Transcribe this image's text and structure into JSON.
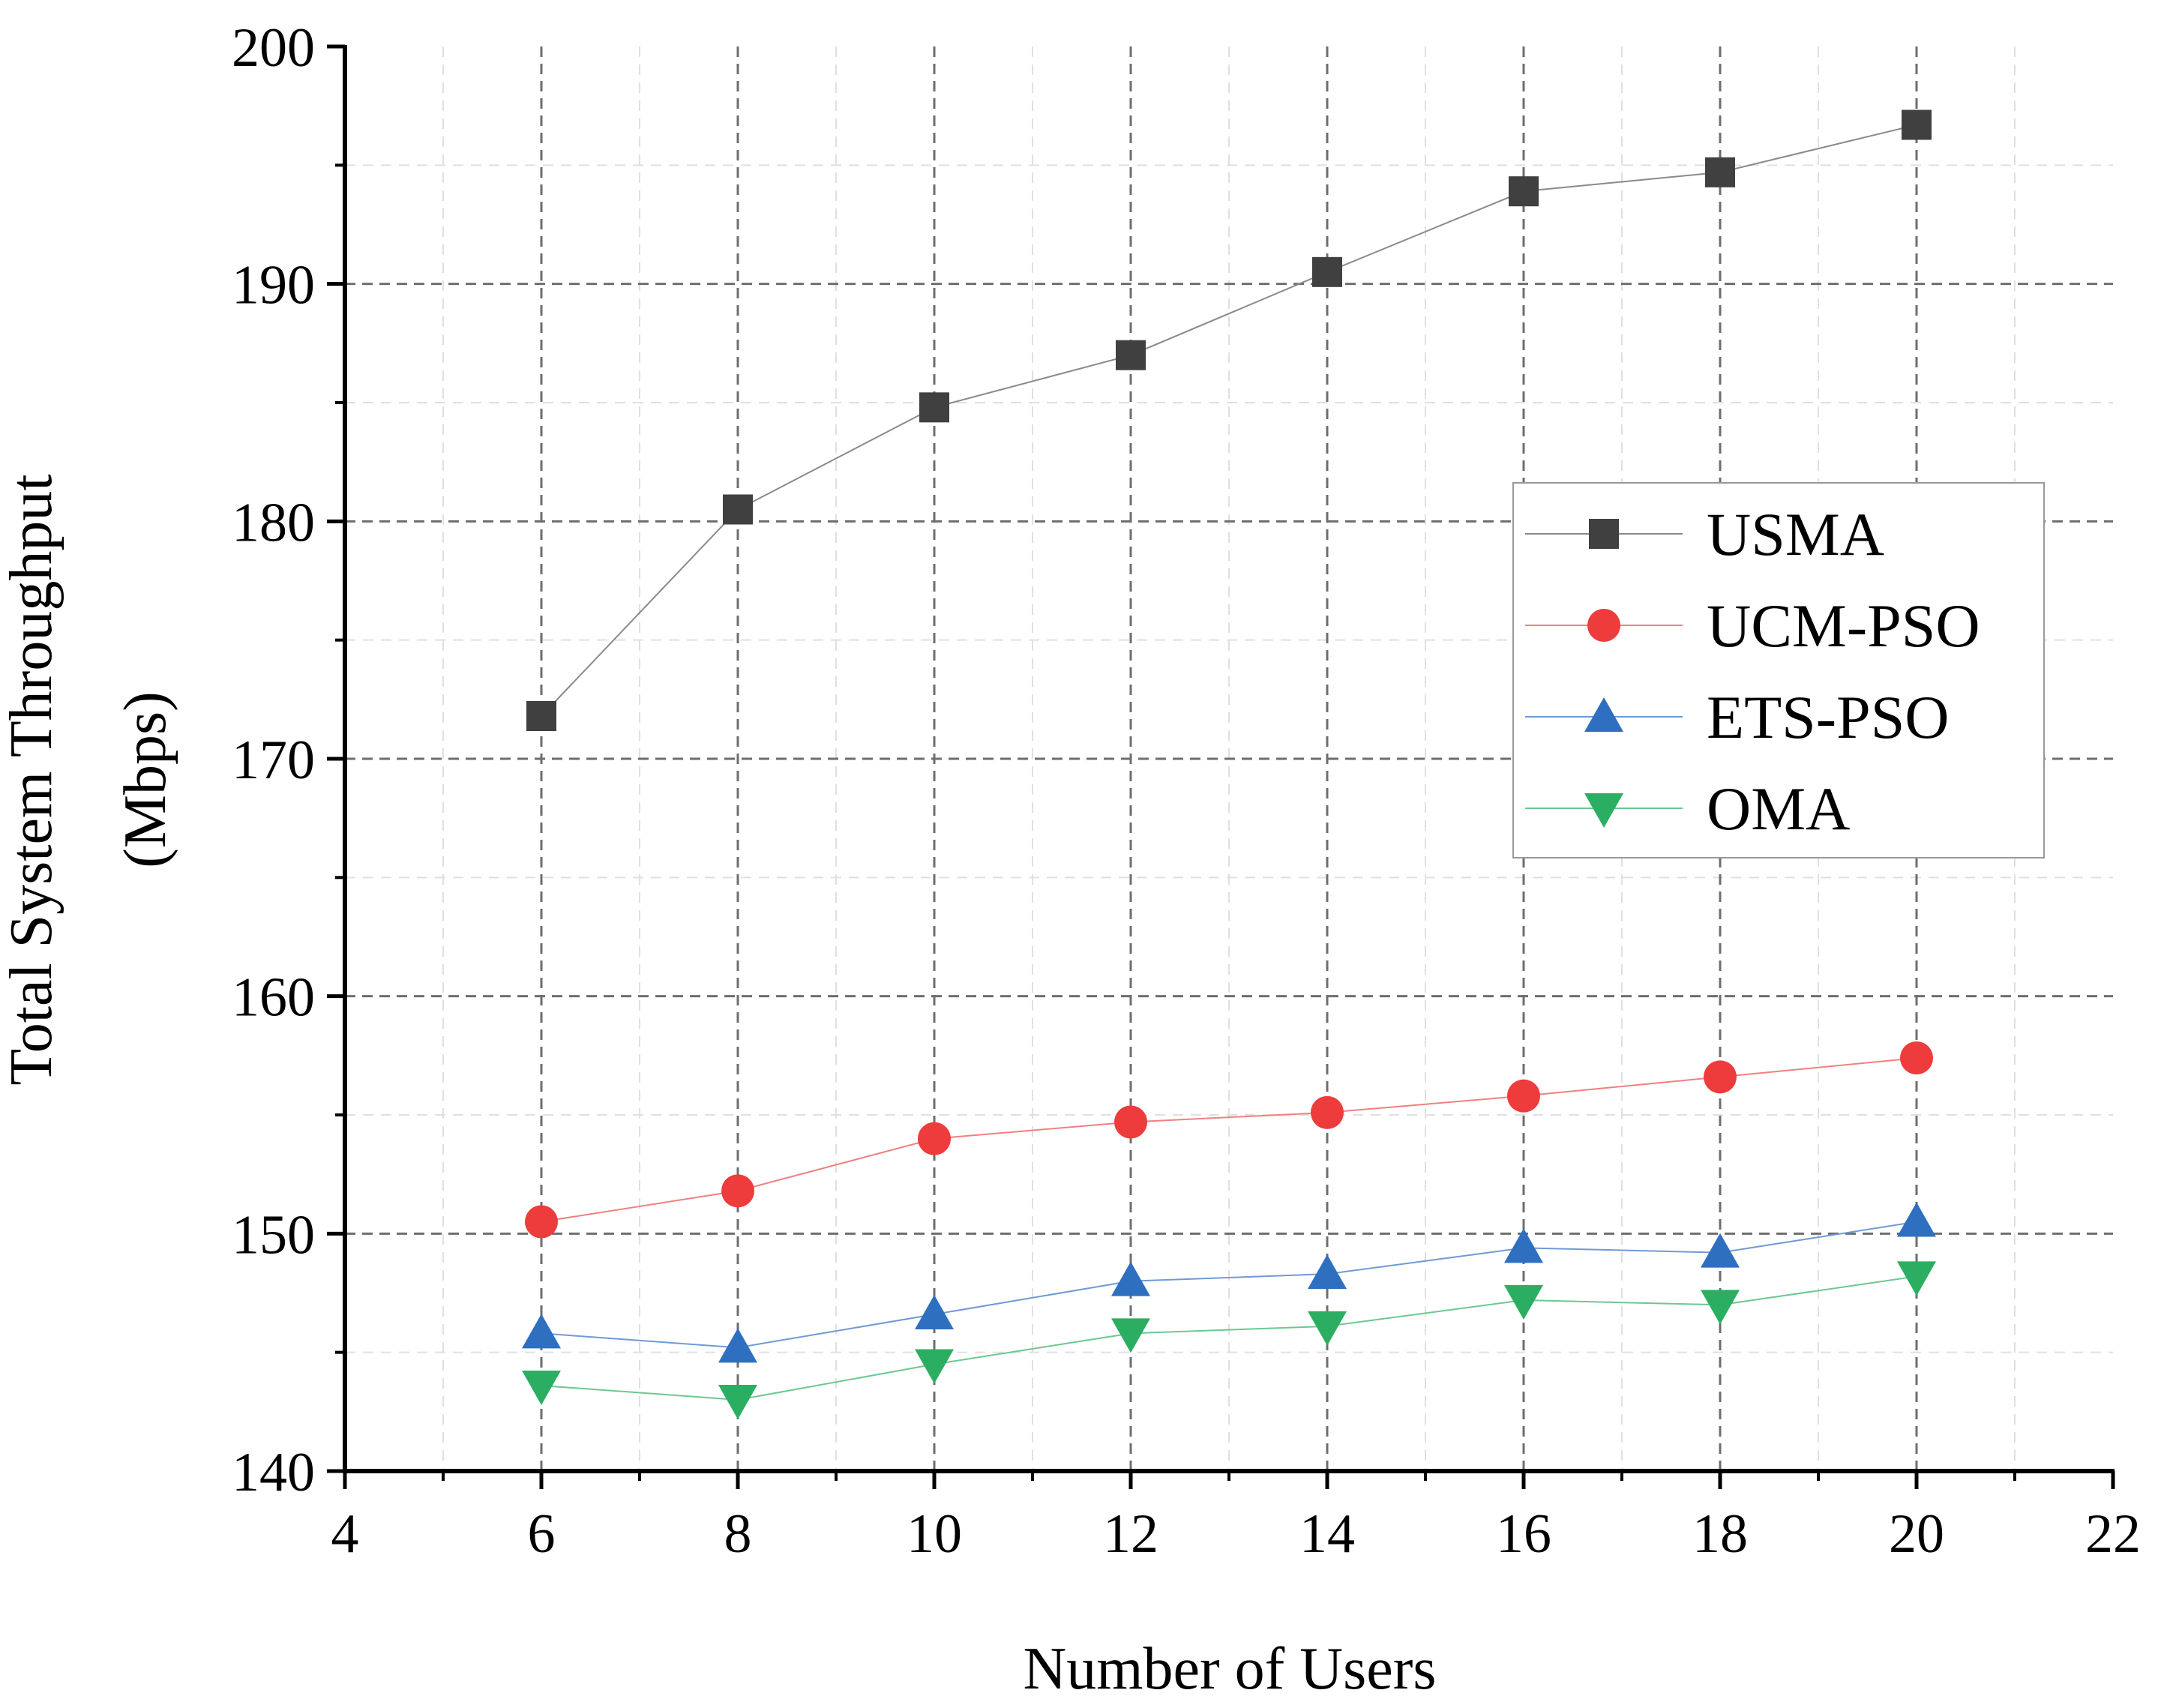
{
  "chart_data": {
    "type": "line",
    "title": "",
    "xlabel": "Number of Users",
    "ylabel_lines": [
      "Total System Throughput",
      "(Mbps)"
    ],
    "xlim": [
      4,
      22
    ],
    "ylim": [
      140,
      200
    ],
    "x_major_ticks": [
      4,
      6,
      8,
      10,
      12,
      14,
      16,
      18,
      20,
      22
    ],
    "y_major_ticks": [
      140,
      150,
      160,
      170,
      180,
      190,
      200
    ],
    "x_tick_labels": [
      "4",
      "6",
      "8",
      "10",
      "12",
      "14",
      "16",
      "18",
      "20",
      "22"
    ],
    "y_tick_labels": [
      "140",
      "150",
      "160",
      "170",
      "180",
      "190",
      "200"
    ],
    "grid": true,
    "legend_position": "upper-right",
    "x": [
      6,
      8,
      10,
      12,
      14,
      16,
      18,
      20
    ],
    "series": [
      {
        "name": "USMA",
        "marker": "square",
        "color": "#404040",
        "line_color": "#8a8a8a",
        "values": [
          171.8,
          180.5,
          184.8,
          187.0,
          190.5,
          193.9,
          194.7,
          196.7
        ]
      },
      {
        "name": "UCM-PSO",
        "marker": "circle",
        "color": "#ee3b3b",
        "line_color": "#f08080",
        "values": [
          150.5,
          151.8,
          154.0,
          154.7,
          155.1,
          155.8,
          156.6,
          157.4
        ]
      },
      {
        "name": "ETS-PSO",
        "marker": "triangle-up",
        "color": "#2e6fc0",
        "line_color": "#6f9ad6",
        "values": [
          145.8,
          145.2,
          146.6,
          148.0,
          148.3,
          149.4,
          149.2,
          150.5
        ]
      },
      {
        "name": "OMA",
        "marker": "triangle-down",
        "color": "#2cae62",
        "line_color": "#6cc891",
        "values": [
          143.6,
          143.0,
          144.5,
          145.8,
          146.1,
          147.2,
          147.0,
          148.2
        ]
      }
    ]
  }
}
